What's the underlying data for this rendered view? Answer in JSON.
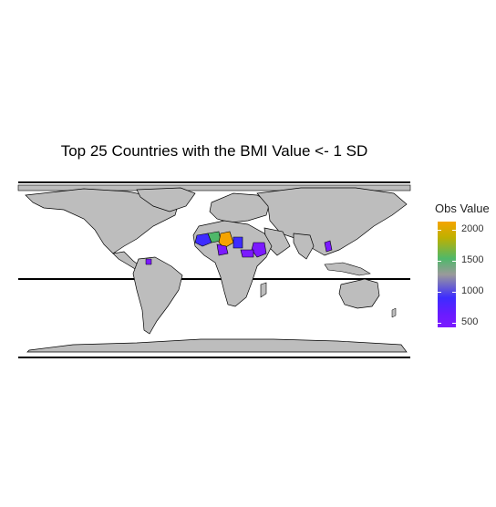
{
  "title": "Top 25 Countries with the BMI Value <- 1 SD",
  "legend": {
    "title": "Obs Value",
    "labels": [
      "2000",
      "1500",
      "1000",
      "500"
    ],
    "colors": [
      "#f5a400",
      "#4fb86a",
      "#9a9a9a",
      "#3d2cff",
      "#7b1aff"
    ]
  },
  "map": {
    "land_color": "#bdbdbd",
    "border_color": "#000000",
    "highlighted_regions": [
      {
        "region": "West Africa",
        "color": "#3d2cff"
      },
      {
        "region": "Sahel",
        "color": "#f5a400"
      },
      {
        "region": "Central Africa",
        "color": "#7b1aff"
      },
      {
        "region": "East Africa",
        "color": "#7b1aff"
      },
      {
        "region": "Southeast Asia",
        "color": "#7b1aff"
      }
    ]
  }
}
